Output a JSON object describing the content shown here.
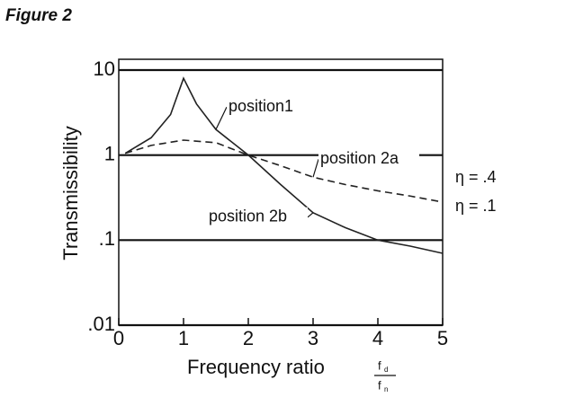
{
  "chart_data": {
    "type": "line",
    "title": "Figure 2",
    "x_label": "Frequency ratio",
    "x_label_fraction": {
      "numerator": "f",
      "numerator_sub": "d",
      "denominator": "f",
      "denominator_sub": "n"
    },
    "y_label": "Transmissibility",
    "log_y": true,
    "grid": true,
    "xlim": [
      0,
      5
    ],
    "xticks": [
      0,
      1,
      2,
      3,
      4,
      5
    ],
    "ylim": [
      0.01,
      10
    ],
    "yticks": [
      {
        "value": 0.01,
        "label": ".01"
      },
      {
        "value": 0.1,
        "label": ".1"
      },
      1,
      10
    ],
    "series": [
      {
        "name": "η = .4",
        "color": "#222222",
        "dash": true,
        "x": [
          0.1,
          0.5,
          1,
          1.5,
          2,
          2.5,
          3,
          3.5,
          4,
          4.5,
          5
        ],
        "values": [
          1.05,
          1.3,
          1.5,
          1.4,
          1.0,
          0.75,
          0.55,
          0.45,
          0.38,
          0.33,
          0.28
        ]
      },
      {
        "name": "η = .1",
        "color": "#222222",
        "dash": false,
        "x": [
          0.1,
          0.5,
          0.8,
          1,
          1.2,
          1.5,
          2,
          2.5,
          3,
          3.5,
          4,
          4.5,
          5
        ],
        "values": [
          1.05,
          1.6,
          3,
          8,
          4,
          2,
          1,
          0.45,
          0.21,
          0.14,
          0.1,
          0.085,
          0.07
        ]
      }
    ],
    "annotations": [
      {
        "text": "position1",
        "series": 1,
        "point": 5
      },
      {
        "text": "position 2a",
        "series": 0,
        "point": 6
      },
      {
        "text": "position 2b",
        "series": 1,
        "point": 8
      }
    ]
  }
}
